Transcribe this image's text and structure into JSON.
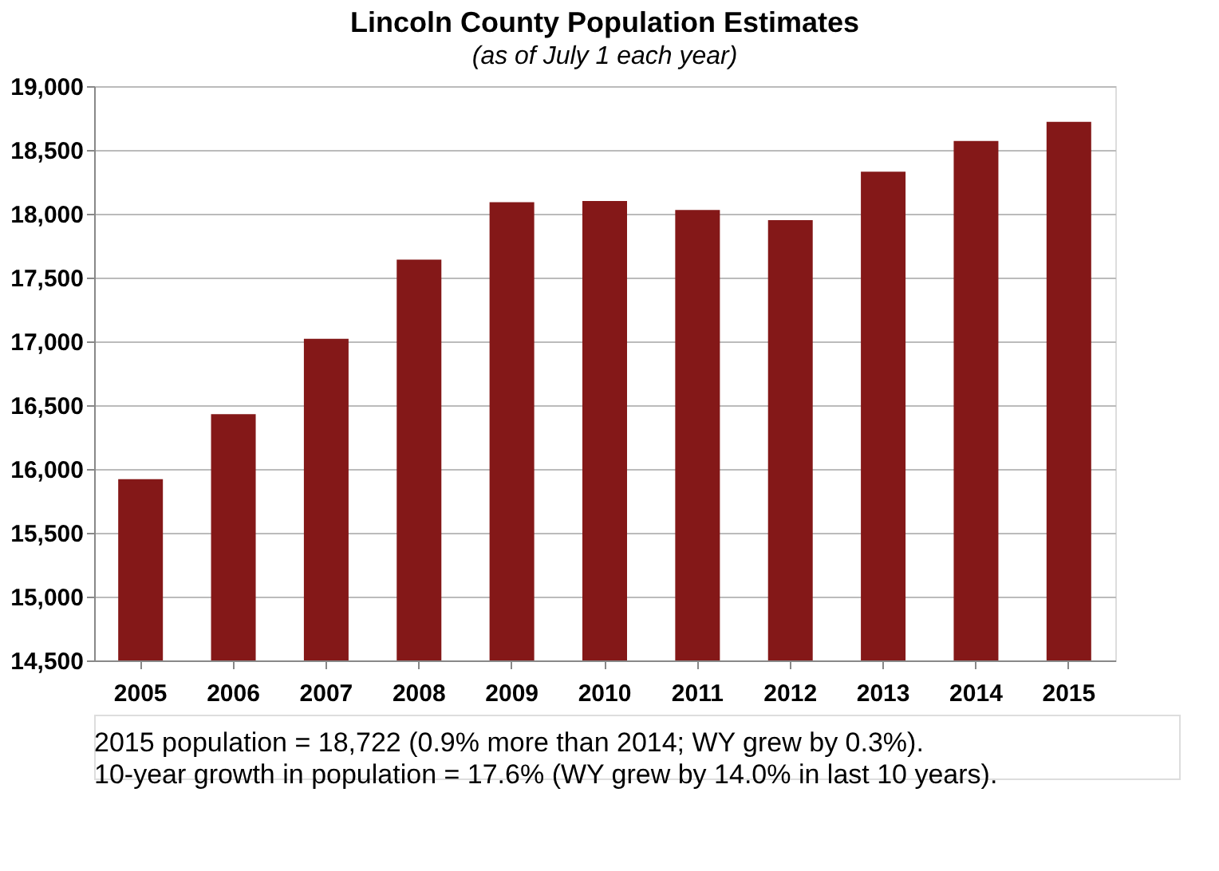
{
  "chart_data": {
    "type": "bar",
    "title": "Lincoln County Population Estimates",
    "subtitle": "(as of July 1 each year)",
    "categories": [
      "2005",
      "2006",
      "2007",
      "2008",
      "2009",
      "2010",
      "2011",
      "2012",
      "2013",
      "2014",
      "2015"
    ],
    "values": [
      15920,
      16430,
      17020,
      17640,
      18090,
      18100,
      18030,
      17950,
      18330,
      18570,
      18720
    ],
    "color": "#841818",
    "ylim": [
      14500,
      19000
    ],
    "yticks": [
      {
        "value": 14500,
        "label": "14,500"
      },
      {
        "value": 15000,
        "label": "15,000"
      },
      {
        "value": 15500,
        "label": "15,500"
      },
      {
        "value": 16000,
        "label": "16,000"
      },
      {
        "value": 16500,
        "label": "16,500"
      },
      {
        "value": 17000,
        "label": "17,000"
      },
      {
        "value": 17500,
        "label": "17,500"
      },
      {
        "value": 18000,
        "label": "18,000"
      },
      {
        "value": 18500,
        "label": "18,500"
      },
      {
        "value": 19000,
        "label": "19,000"
      }
    ],
    "grid": "y",
    "annotations": [
      "2015 population = 18,722 (0.9% more than 2014; WY grew by 0.3%).",
      "10-year growth in population = 17.6% (WY grew by 14.0% in last 10 years)."
    ]
  }
}
